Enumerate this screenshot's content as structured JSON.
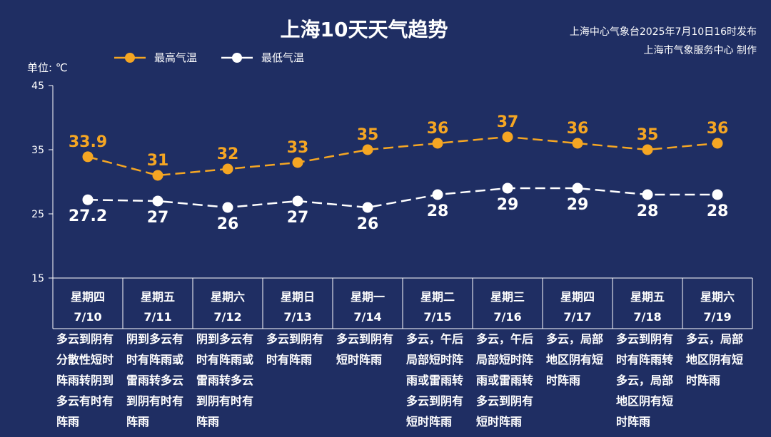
{
  "header": {
    "title": "上海10天天气趋势",
    "issuer_line1": "上海中心气象台2025年7月10日16时发布",
    "issuer_line2": "上海市气象服务中心 制作",
    "unit": "单位: ℃"
  },
  "colors": {
    "background": "#1f2e63",
    "high": "#f5a623",
    "low": "#ffffff"
  },
  "chart_data": {
    "type": "line",
    "title": "上海10天天气趋势",
    "ylabel": "单位: ℃",
    "ylim": [
      15,
      45
    ],
    "yticks": [
      "15",
      "25",
      "35",
      "45"
    ],
    "grid": false,
    "legend": "top-left",
    "categories": [
      "星期四 7/10",
      "星期五 7/11",
      "星期六 7/12",
      "星期日 7/13",
      "星期一 7/14",
      "星期二 7/15",
      "星期三 7/16",
      "星期四 7/17",
      "星期五 7/18",
      "星期六 7/19"
    ],
    "series": [
      {
        "name": "最高气温",
        "values": [
          33.9,
          31,
          32,
          33,
          35,
          36,
          37,
          36,
          35,
          36
        ],
        "labels": [
          "33.9",
          "31",
          "32",
          "33",
          "35",
          "36",
          "37",
          "36",
          "35",
          "36"
        ]
      },
      {
        "name": "最低气温",
        "values": [
          27.2,
          27,
          26,
          27,
          26,
          28,
          29,
          29,
          28,
          28
        ],
        "labels": [
          "27.2",
          "27",
          "26",
          "27",
          "26",
          "28",
          "29",
          "29",
          "28",
          "28"
        ]
      }
    ]
  },
  "days": [
    {
      "weekday": "星期四",
      "date": "7/10",
      "desc": "多云到阴有分散性短时阵雨转阴到多云有时有阵雨"
    },
    {
      "weekday": "星期五",
      "date": "7/11",
      "desc": "阴到多云有时有阵雨或雷雨转多云到阴有时有阵雨"
    },
    {
      "weekday": "星期六",
      "date": "7/12",
      "desc": "阴到多云有时有阵雨或雷雨转多云到阴有时有阵雨"
    },
    {
      "weekday": "星期日",
      "date": "7/13",
      "desc": "多云到阴有时有阵雨"
    },
    {
      "weekday": "星期一",
      "date": "7/14",
      "desc": "多云到阴有短时阵雨"
    },
    {
      "weekday": "星期二",
      "date": "7/15",
      "desc": "多云，午后局部短时阵雨或雷雨转多云到阴有短时阵雨"
    },
    {
      "weekday": "星期三",
      "date": "7/16",
      "desc": "多云，午后局部短时阵雨或雷雨转多云到阴有短时阵雨"
    },
    {
      "weekday": "星期四",
      "date": "7/17",
      "desc": "多云，局部地区阴有短时阵雨"
    },
    {
      "weekday": "星期五",
      "date": "7/18",
      "desc": "多云到阴有时有阵雨转多云，局部地区阴有短时阵雨"
    },
    {
      "weekday": "星期六",
      "date": "7/19",
      "desc": "多云，局部地区阴有短时阵雨"
    }
  ]
}
